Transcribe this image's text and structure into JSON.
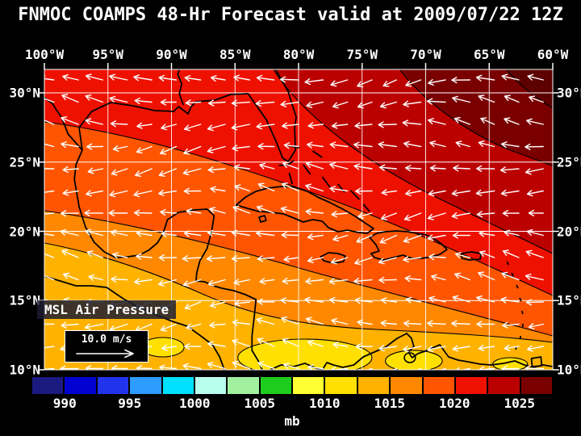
{
  "title": "FNMOC COAMPS 48-Hr Forecast valid at 2009/07/22 12Z",
  "map": {
    "lon_labels": [
      "100°W",
      "95°W",
      "90°W",
      "85°W",
      "80°W",
      "75°W",
      "70°W",
      "65°W",
      "60°W"
    ],
    "lat_labels": [
      "30°N",
      "25°N",
      "20°N",
      "15°N",
      "10°N"
    ],
    "field_label": "MSL Air Pressure",
    "wind_scale_label": "10.0 m/s",
    "grid_color": "#ffffff",
    "coastline_color": "#000000",
    "wind_arrow_color": "#ffffff",
    "corner_dark_color": "#5c0000"
  },
  "colorbar": {
    "unit": "mb",
    "tick_labels": [
      "990",
      "995",
      "1000",
      "1005",
      "1010",
      "1015",
      "1020",
      "1025"
    ],
    "colors": [
      "#1a1a80",
      "#0000d0",
      "#2233ee",
      "#2e9bff",
      "#00e0ff",
      "#b8fff0",
      "#a0f0a0",
      "#1ecc1e",
      "#ffff33",
      "#ffe000",
      "#ffb300",
      "#ff8800",
      "#ff5500",
      "#ee1100",
      "#bb0000",
      "#7a0000"
    ]
  },
  "chart_data": {
    "type": "heatmap",
    "title": "FNMOC COAMPS 48-Hr Forecast valid at 2009/07/22 12Z",
    "variable": "MSL Air Pressure",
    "unit": "mb",
    "x_ticks": [
      "100°W",
      "95°W",
      "90°W",
      "85°W",
      "80°W",
      "75°W",
      "70°W",
      "65°W",
      "60°W"
    ],
    "y_ticks": [
      "30°N",
      "25°N",
      "20°N",
      "15°N",
      "10°N"
    ],
    "colorbar_ticks": [
      990,
      995,
      1000,
      1005,
      1010,
      1015,
      1020,
      1025
    ],
    "colorbar_range": [
      987.5,
      1027.5
    ],
    "wind_scale": {
      "value": 10.0,
      "unit": "m/s"
    },
    "overlay": "white wind vectors, predominantly easterly (pointing west)",
    "field_reading": {
      "central_america_south": "≈1008-1013 mb (yellow / light orange)",
      "gulf_of_mexico_caribbean": "≈1013-1018 mb (orange / orange-red)",
      "northeast_atlantic_corner": "≈1020-1026 mb (dark red ridge)"
    }
  }
}
